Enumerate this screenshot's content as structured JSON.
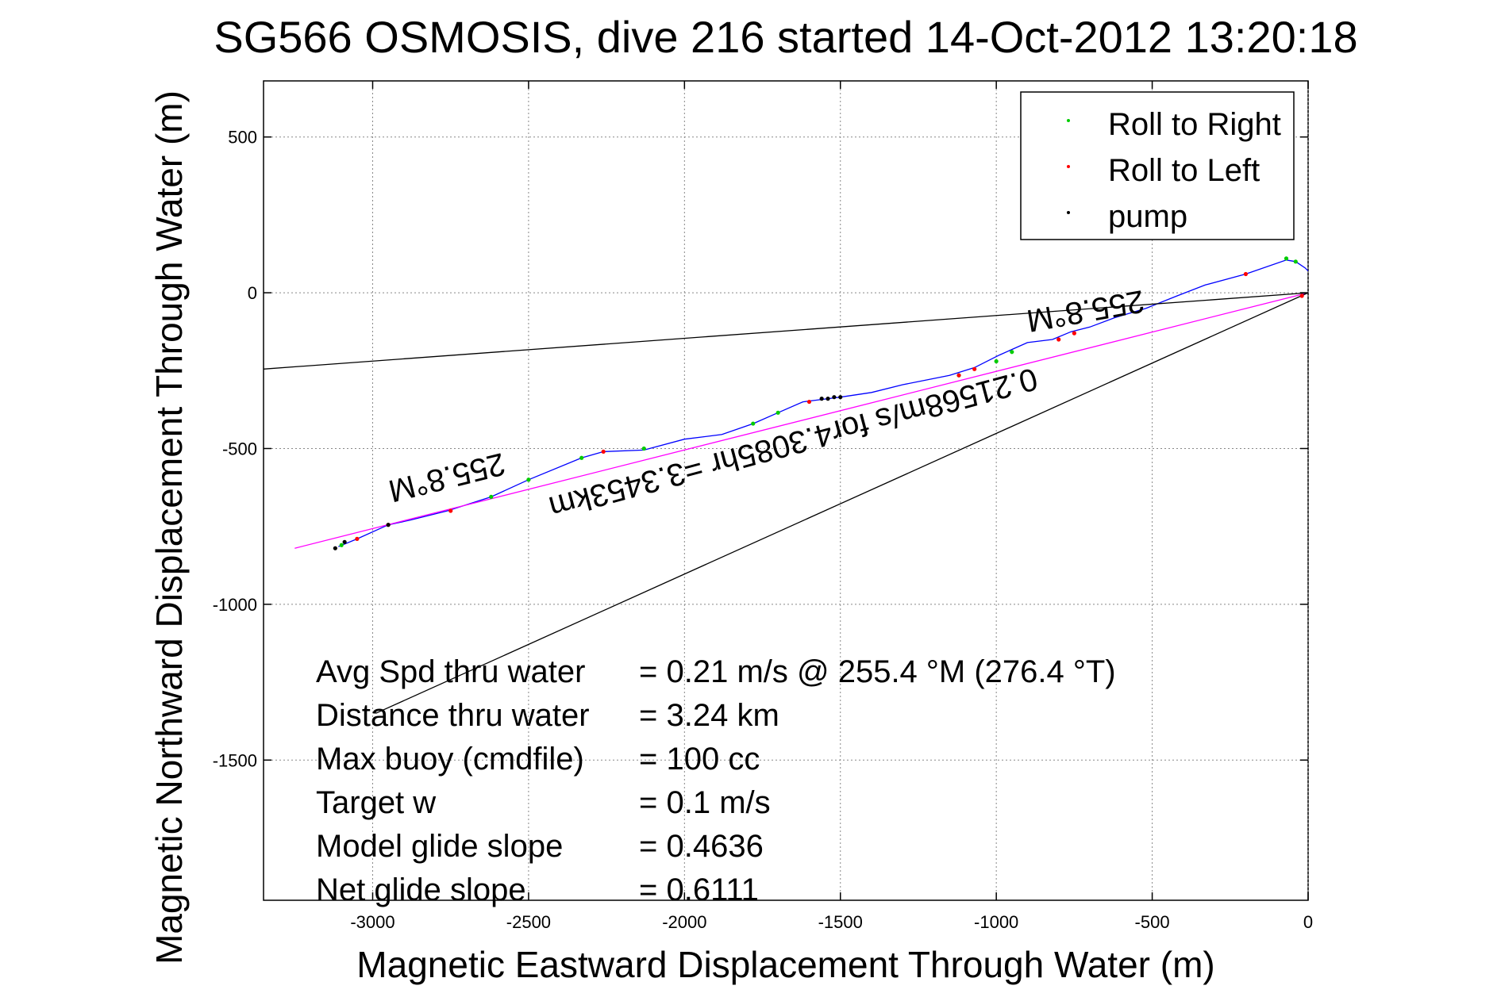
{
  "chart_data": {
    "type": "line",
    "title": "SG566 OSMOSIS, dive 216 started 14-Oct-2012 13:20:18",
    "xlabel": "Magnetic Eastward Displacement Through Water (m)",
    "ylabel": "Magnetic Northward Displacement Through Water (m)",
    "xlim": [
      -3350,
      0
    ],
    "ylim": [
      -1950,
      680
    ],
    "xticks": [
      -3000,
      -2500,
      -2000,
      -1500,
      -1000,
      -500,
      0
    ],
    "yticks": [
      500,
      0,
      -500,
      -1000,
      -1500
    ],
    "xtick_labels": [
      "-3000",
      "-2500",
      "-2000",
      "-1500",
      "-1000",
      "-500",
      "0"
    ],
    "ytick_labels": [
      "500",
      "0",
      "-500",
      "-1000",
      "-1500"
    ],
    "grid": true,
    "legend_position": "top-right",
    "legend": [
      {
        "label": "Roll to Right",
        "color": "#00cc00"
      },
      {
        "label": "Roll to Left",
        "color": "#ff0000"
      },
      {
        "label": "pump",
        "color": "#000000"
      }
    ],
    "series": [
      {
        "name": "track",
        "color": "#0000ff",
        "x": [
          -3110,
          -3050,
          -2950,
          -2880,
          -2760,
          -2620,
          -2500,
          -2330,
          -2260,
          -2130,
          -2000,
          -1880,
          -1780,
          -1700,
          -1620,
          -1580,
          -1500,
          -1400,
          -1300,
          -1150,
          -1070,
          -990,
          -900,
          -820,
          -760,
          -700,
          -620,
          -520,
          -420,
          -330,
          -200,
          -70,
          -40,
          -10,
          0
        ],
        "y": [
          -815,
          -790,
          -745,
          -730,
          -700,
          -655,
          -600,
          -530,
          -510,
          -505,
          -470,
          -455,
          -420,
          -385,
          -350,
          -345,
          -335,
          -320,
          -295,
          -265,
          -240,
          -200,
          -160,
          -150,
          -125,
          -110,
          -80,
          -50,
          -10,
          25,
          60,
          105,
          100,
          80,
          70
        ]
      },
      {
        "name": "mean course",
        "color": "#ff00ff",
        "x": [
          -3250,
          0
        ],
        "y": [
          -820,
          0
        ]
      },
      {
        "name": "heading line north",
        "color": "#000000",
        "x": [
          -3350,
          0
        ],
        "y": [
          -245,
          0
        ]
      },
      {
        "name": "heading line south",
        "color": "#000000",
        "x": [
          -2990,
          0
        ],
        "y": [
          -1350,
          0
        ]
      }
    ],
    "markers": {
      "roll_right": {
        "color": "#00cc00",
        "x": [
          -3100,
          -2620,
          -2500,
          -2330,
          -2130,
          -1780,
          -1700,
          -1120,
          -1000,
          -950,
          -70,
          -40
        ],
        "y": [
          -810,
          -655,
          -600,
          -530,
          -500,
          -420,
          -385,
          -265,
          -220,
          -190,
          110,
          100
        ]
      },
      "roll_left": {
        "color": "#ff0000",
        "x": [
          -3050,
          -2950,
          -2750,
          -2260,
          -1600,
          -1120,
          -1070,
          -800,
          -750,
          -200,
          -20
        ],
        "y": [
          -790,
          -745,
          -700,
          -510,
          -350,
          -265,
          -245,
          -150,
          -130,
          60,
          -10
        ]
      },
      "pump": {
        "color": "#000000",
        "x": [
          -3120,
          -3090,
          -2950,
          -1560,
          -1540,
          -1520,
          -1500
        ],
        "y": [
          -820,
          -800,
          -745,
          -340,
          -340,
          -335,
          -335
        ]
      }
    },
    "annotations": [
      {
        "text": "255.8°M",
        "x": -2770,
        "y": -560,
        "rotation_deg": 166
      },
      {
        "text": "255.8°M",
        "x": -720,
        "y": -25,
        "rotation_deg": 170
      },
      {
        "text": "0.21568m/s for4.3085hr =3.3453km",
        "x": -1660,
        "y": -450,
        "rotation_deg": 165
      }
    ],
    "stats": [
      {
        "label": "Avg Spd thru water",
        "value": "=  0.21 m/s @ 255.4 °M (276.4 °T)"
      },
      {
        "label": "Distance thru water",
        "value": "=  3.24 km"
      },
      {
        "label": "Max buoy (cmdfile)",
        "value": "= 100 cc"
      },
      {
        "label": "Target w",
        "value": "= 0.1 m/s"
      },
      {
        "label": "Model glide slope",
        "value": "= 0.4636"
      },
      {
        "label": "Net glide slope",
        "value": "= 0.6111"
      }
    ]
  }
}
